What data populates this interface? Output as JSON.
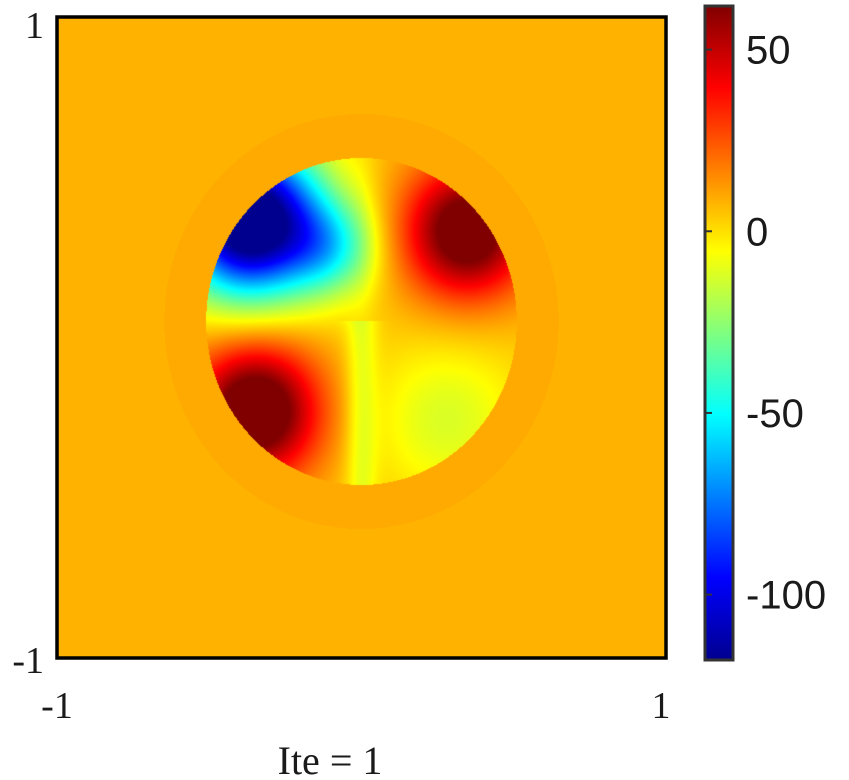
{
  "chart_data": {
    "type": "heatmap",
    "title": "",
    "xlabel": "Ite = 1",
    "ylabel": "",
    "xlim": [
      -1,
      1
    ],
    "ylim": [
      -1,
      1
    ],
    "x_tick_labels": [
      "-1",
      "1"
    ],
    "y_tick_labels": [
      "1",
      "-1"
    ],
    "background_value": 8,
    "circle": {
      "center": [
        0,
        0.05
      ],
      "radius": 0.51,
      "description": "phase-like field inside a disk: blue lobe upper-left, red lobes upper-right and lower-left, yellow/green cross-shaped saddle through center"
    },
    "colorbar": {
      "colormap": "jet",
      "min": -118,
      "max": 62,
      "ticks": [
        50,
        0,
        -50,
        -100
      ],
      "tick_labels": [
        "50",
        "0",
        "-50",
        "-100"
      ],
      "position": "right"
    },
    "colors": {
      "frame": "#000000",
      "background_field": "#FDD700"
    }
  }
}
